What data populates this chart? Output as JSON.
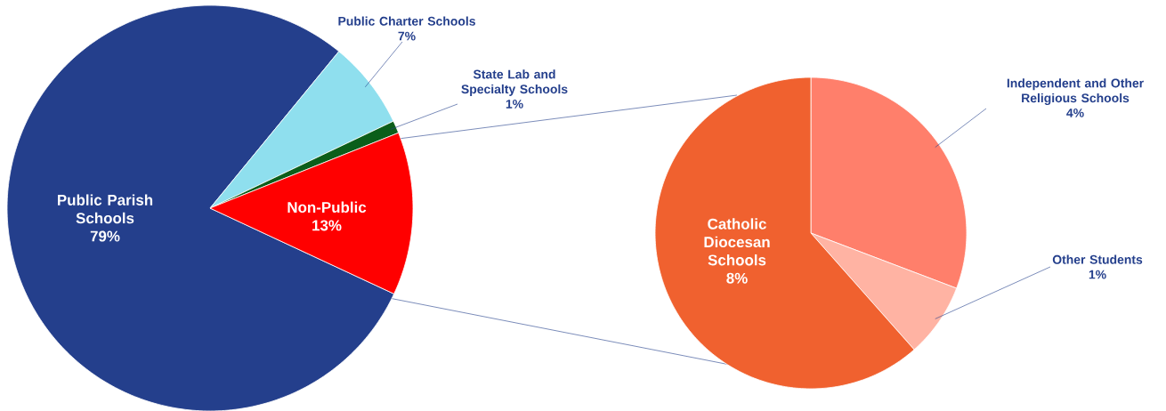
{
  "chart_data": [
    {
      "type": "pie",
      "categories": [
        "Public Parish Schools",
        "Public Charter Schools",
        "State Lab and Specialty Schools",
        "Non-Public"
      ],
      "values": [
        79,
        7,
        1,
        13
      ],
      "value_labels": [
        "79%",
        "7%",
        "1%",
        "13%"
      ],
      "colors": [
        "#243f8c",
        "#8fdfee",
        "#0b5e1a",
        "#ff0000"
      ]
    },
    {
      "type": "pie",
      "categories": [
        "Independent and Other Religious Schools",
        "Other Students",
        "Catholic Diocesan Schools"
      ],
      "values": [
        4,
        1,
        8
      ],
      "value_labels": [
        "4%",
        "1%",
        "8%"
      ],
      "colors": [
        "#ff7f6b",
        "#ffb3a3",
        "#f0612f"
      ]
    }
  ]
}
